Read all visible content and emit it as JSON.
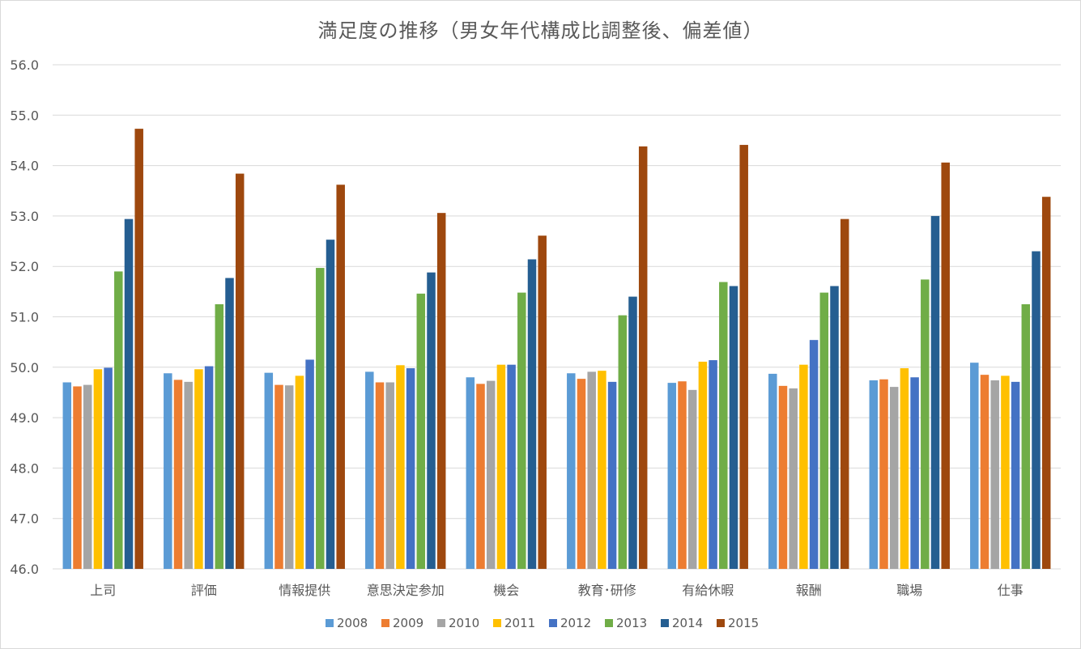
{
  "chart_data": {
    "type": "bar",
    "title": "満足度の推移（男女年代構成比調整後、偏差値）",
    "xlabel": "",
    "ylabel": "",
    "ylim": [
      46.0,
      56.0
    ],
    "yticks": [
      "46.0",
      "47.0",
      "48.0",
      "49.0",
      "50.0",
      "51.0",
      "52.0",
      "53.0",
      "54.0",
      "55.0",
      "56.0"
    ],
    "grid": true,
    "legend_position": "bottom",
    "categories": [
      "上司",
      "評価",
      "情報提供",
      "意思決定参加",
      "機会",
      "教育･研修",
      "有給休暇",
      "報酬",
      "職場",
      "仕事"
    ],
    "series": [
      {
        "name": "2008",
        "color": "#5b9bd5",
        "values": [
          49.7,
          49.88,
          49.89,
          49.91,
          49.8,
          49.88,
          49.69,
          49.87,
          49.74,
          50.09
        ]
      },
      {
        "name": "2009",
        "color": "#ed7d31",
        "values": [
          49.62,
          49.75,
          49.65,
          49.7,
          49.67,
          49.77,
          49.72,
          49.63,
          49.76,
          49.85
        ]
      },
      {
        "name": "2010",
        "color": "#a5a5a5",
        "values": [
          49.65,
          49.71,
          49.64,
          49.7,
          49.73,
          49.91,
          49.55,
          49.58,
          49.61,
          49.74
        ]
      },
      {
        "name": "2011",
        "color": "#ffc000",
        "values": [
          49.96,
          49.96,
          49.83,
          50.04,
          50.05,
          49.93,
          50.11,
          50.05,
          49.98,
          49.83
        ]
      },
      {
        "name": "2012",
        "color": "#4472c4",
        "values": [
          49.99,
          50.02,
          50.15,
          49.98,
          50.05,
          49.71,
          50.14,
          50.54,
          49.8,
          49.71
        ]
      },
      {
        "name": "2013",
        "color": "#70ad47",
        "values": [
          51.9,
          51.25,
          51.97,
          51.46,
          51.48,
          51.03,
          51.69,
          51.48,
          51.74,
          51.25
        ]
      },
      {
        "name": "2014",
        "color": "#255e91",
        "values": [
          52.94,
          51.77,
          52.53,
          51.88,
          52.14,
          51.4,
          51.61,
          51.61,
          53.0,
          52.3
        ]
      },
      {
        "name": "2015",
        "color": "#9e480e",
        "values": [
          54.73,
          53.84,
          53.62,
          53.06,
          52.61,
          54.38,
          54.41,
          52.94,
          54.06,
          53.38
        ]
      }
    ]
  }
}
